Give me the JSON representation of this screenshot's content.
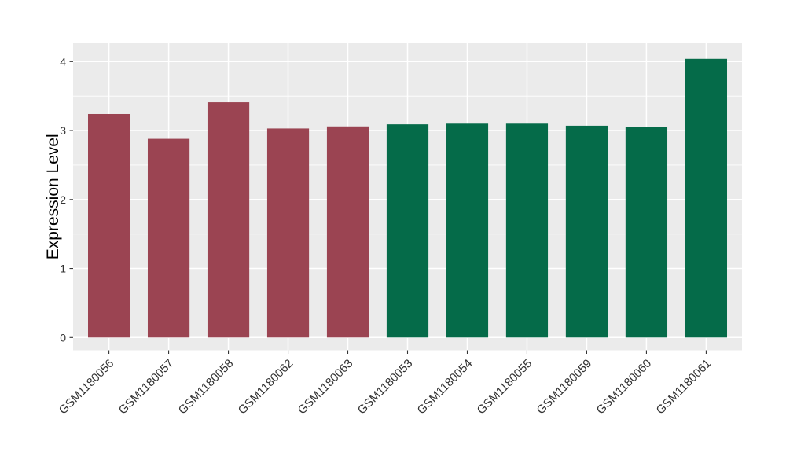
{
  "chart_data": {
    "type": "bar",
    "title": "",
    "xlabel": "",
    "ylabel": "Expression Level",
    "categories": [
      "GSM1180056",
      "GSM1180057",
      "GSM1180058",
      "GSM1180062",
      "GSM1180063",
      "GSM1180053",
      "GSM1180054",
      "GSM1180055",
      "GSM1180059",
      "GSM1180060",
      "GSM1180061"
    ],
    "values": [
      3.24,
      2.88,
      3.41,
      3.03,
      3.06,
      3.09,
      3.1,
      3.1,
      3.07,
      3.05,
      4.04
    ],
    "bar_colors": [
      "#9B4452",
      "#9B4452",
      "#9B4452",
      "#9B4452",
      "#9B4452",
      "#056B49",
      "#056B49",
      "#056B49",
      "#056B49",
      "#056B49",
      "#056B49"
    ],
    "group_colors": {
      "group1": "#9B4452",
      "group2": "#056B49"
    },
    "yticks": [
      0,
      1,
      2,
      3,
      4
    ],
    "ylim": [
      -0.2,
      4.27
    ],
    "bar_width_ratio": 0.7,
    "grid": "on",
    "legend_position": "none",
    "panel_bg": "#EBEBEB",
    "grid_color": "#FFFFFF",
    "axis_text_color": "#333333",
    "axis_title_color": "#000000",
    "x_label_rotation_deg": 45
  }
}
